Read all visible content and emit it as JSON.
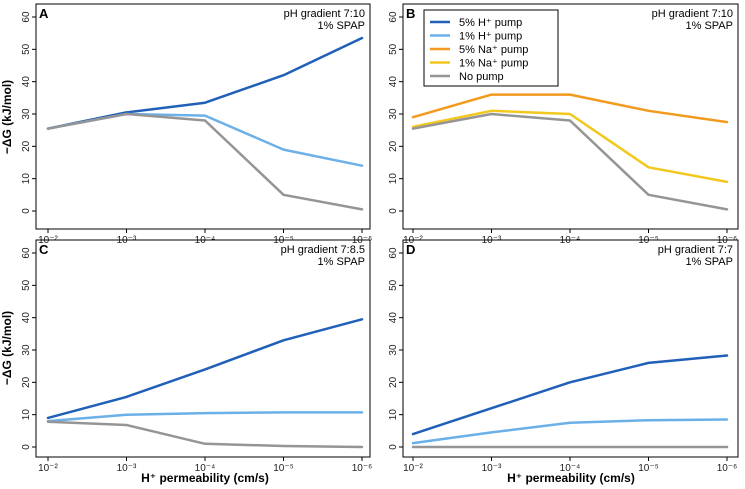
{
  "figure": {
    "y_axis_label": "−ΔG (kJ/mol)",
    "x_axis_label": "H⁺ permeability (cm/s)",
    "x_tick_labels": [
      "10⁻²",
      "10⁻³",
      "10⁻⁴",
      "10⁻⁵",
      "10⁻⁶"
    ],
    "legend": [
      {
        "name": "5% H⁺ pump",
        "color": "#2060B8"
      },
      {
        "name": "1% H⁺ pump",
        "color": "#6CB0E8"
      },
      {
        "name": "5% Na⁺ pump",
        "color": "#F29A1E"
      },
      {
        "name": "1% Na⁺ pump",
        "color": "#F2C81E"
      },
      {
        "name": "No pump",
        "color": "#959595"
      }
    ]
  },
  "chart_data": [
    {
      "panel": "A",
      "type": "line",
      "notes": [
        "pH gradient 7:10",
        "1% SPAP"
      ],
      "categories": [
        "10⁻²",
        "10⁻³",
        "10⁻⁴",
        "10⁻⁵",
        "10⁻⁶"
      ],
      "yticks": [
        0,
        10,
        20,
        30,
        40,
        50,
        60
      ],
      "ylim": [
        0,
        60
      ],
      "series": [
        {
          "name": "5% H⁺ pump",
          "color": "#2060B8",
          "values": [
            25.5,
            30.5,
            33.5,
            42,
            53.5
          ]
        },
        {
          "name": "1% H⁺ pump",
          "color": "#6CB0E8",
          "values": [
            25.5,
            30,
            29.5,
            19,
            14
          ]
        },
        {
          "name": "No pump",
          "color": "#959595",
          "values": [
            25.5,
            30,
            28,
            5,
            0.5
          ]
        }
      ]
    },
    {
      "panel": "B",
      "type": "line",
      "notes": [
        "pH gradient 7:10",
        "1% SPAP"
      ],
      "categories": [
        "10⁻²",
        "10⁻³",
        "10⁻⁴",
        "10⁻⁵",
        "10⁻⁶"
      ],
      "yticks": [
        0,
        10,
        20,
        30,
        40,
        50,
        60
      ],
      "ylim": [
        0,
        60
      ],
      "series": [
        {
          "name": "5% Na⁺ pump",
          "color": "#F29A1E",
          "values": [
            29,
            36,
            36,
            31,
            27.5
          ]
        },
        {
          "name": "1% Na⁺ pump",
          "color": "#F2C81E",
          "values": [
            26,
            31,
            30,
            13.5,
            9
          ]
        },
        {
          "name": "No pump",
          "color": "#959595",
          "values": [
            25.5,
            30,
            28,
            5,
            0.5
          ]
        }
      ]
    },
    {
      "panel": "C",
      "type": "line",
      "notes": [
        "pH gradient 7:8.5",
        "1% SPAP"
      ],
      "categories": [
        "10⁻²",
        "10⁻³",
        "10⁻⁴",
        "10⁻⁵",
        "10⁻⁶"
      ],
      "yticks": [
        0,
        10,
        20,
        30,
        40,
        50,
        60
      ],
      "ylim": [
        0,
        60
      ],
      "series": [
        {
          "name": "5% H⁺ pump",
          "color": "#2060B8",
          "values": [
            9,
            15.5,
            24,
            33,
            39.5
          ]
        },
        {
          "name": "1% H⁺ pump",
          "color": "#6CB0E8",
          "values": [
            8,
            10,
            10.5,
            10.7,
            10.7
          ]
        },
        {
          "name": "No pump",
          "color": "#959595",
          "values": [
            7.8,
            6.8,
            1,
            0.3,
            0
          ]
        }
      ]
    },
    {
      "panel": "D",
      "type": "line",
      "notes": [
        "pH gradient 7:7",
        "1% SPAP"
      ],
      "categories": [
        "10⁻²",
        "10⁻³",
        "10⁻⁴",
        "10⁻⁵",
        "10⁻⁶"
      ],
      "yticks": [
        0,
        10,
        20,
        30,
        40,
        50,
        60
      ],
      "ylim": [
        0,
        60
      ],
      "series": [
        {
          "name": "5% H⁺ pump",
          "color": "#2060B8",
          "values": [
            4,
            12,
            20,
            26,
            28.3
          ]
        },
        {
          "name": "1% H⁺ pump",
          "color": "#6CB0E8",
          "values": [
            1.2,
            4.5,
            7.5,
            8.3,
            8.5
          ]
        },
        {
          "name": "No pump",
          "color": "#959595",
          "values": [
            0,
            0,
            0,
            0,
            0
          ]
        }
      ]
    }
  ]
}
